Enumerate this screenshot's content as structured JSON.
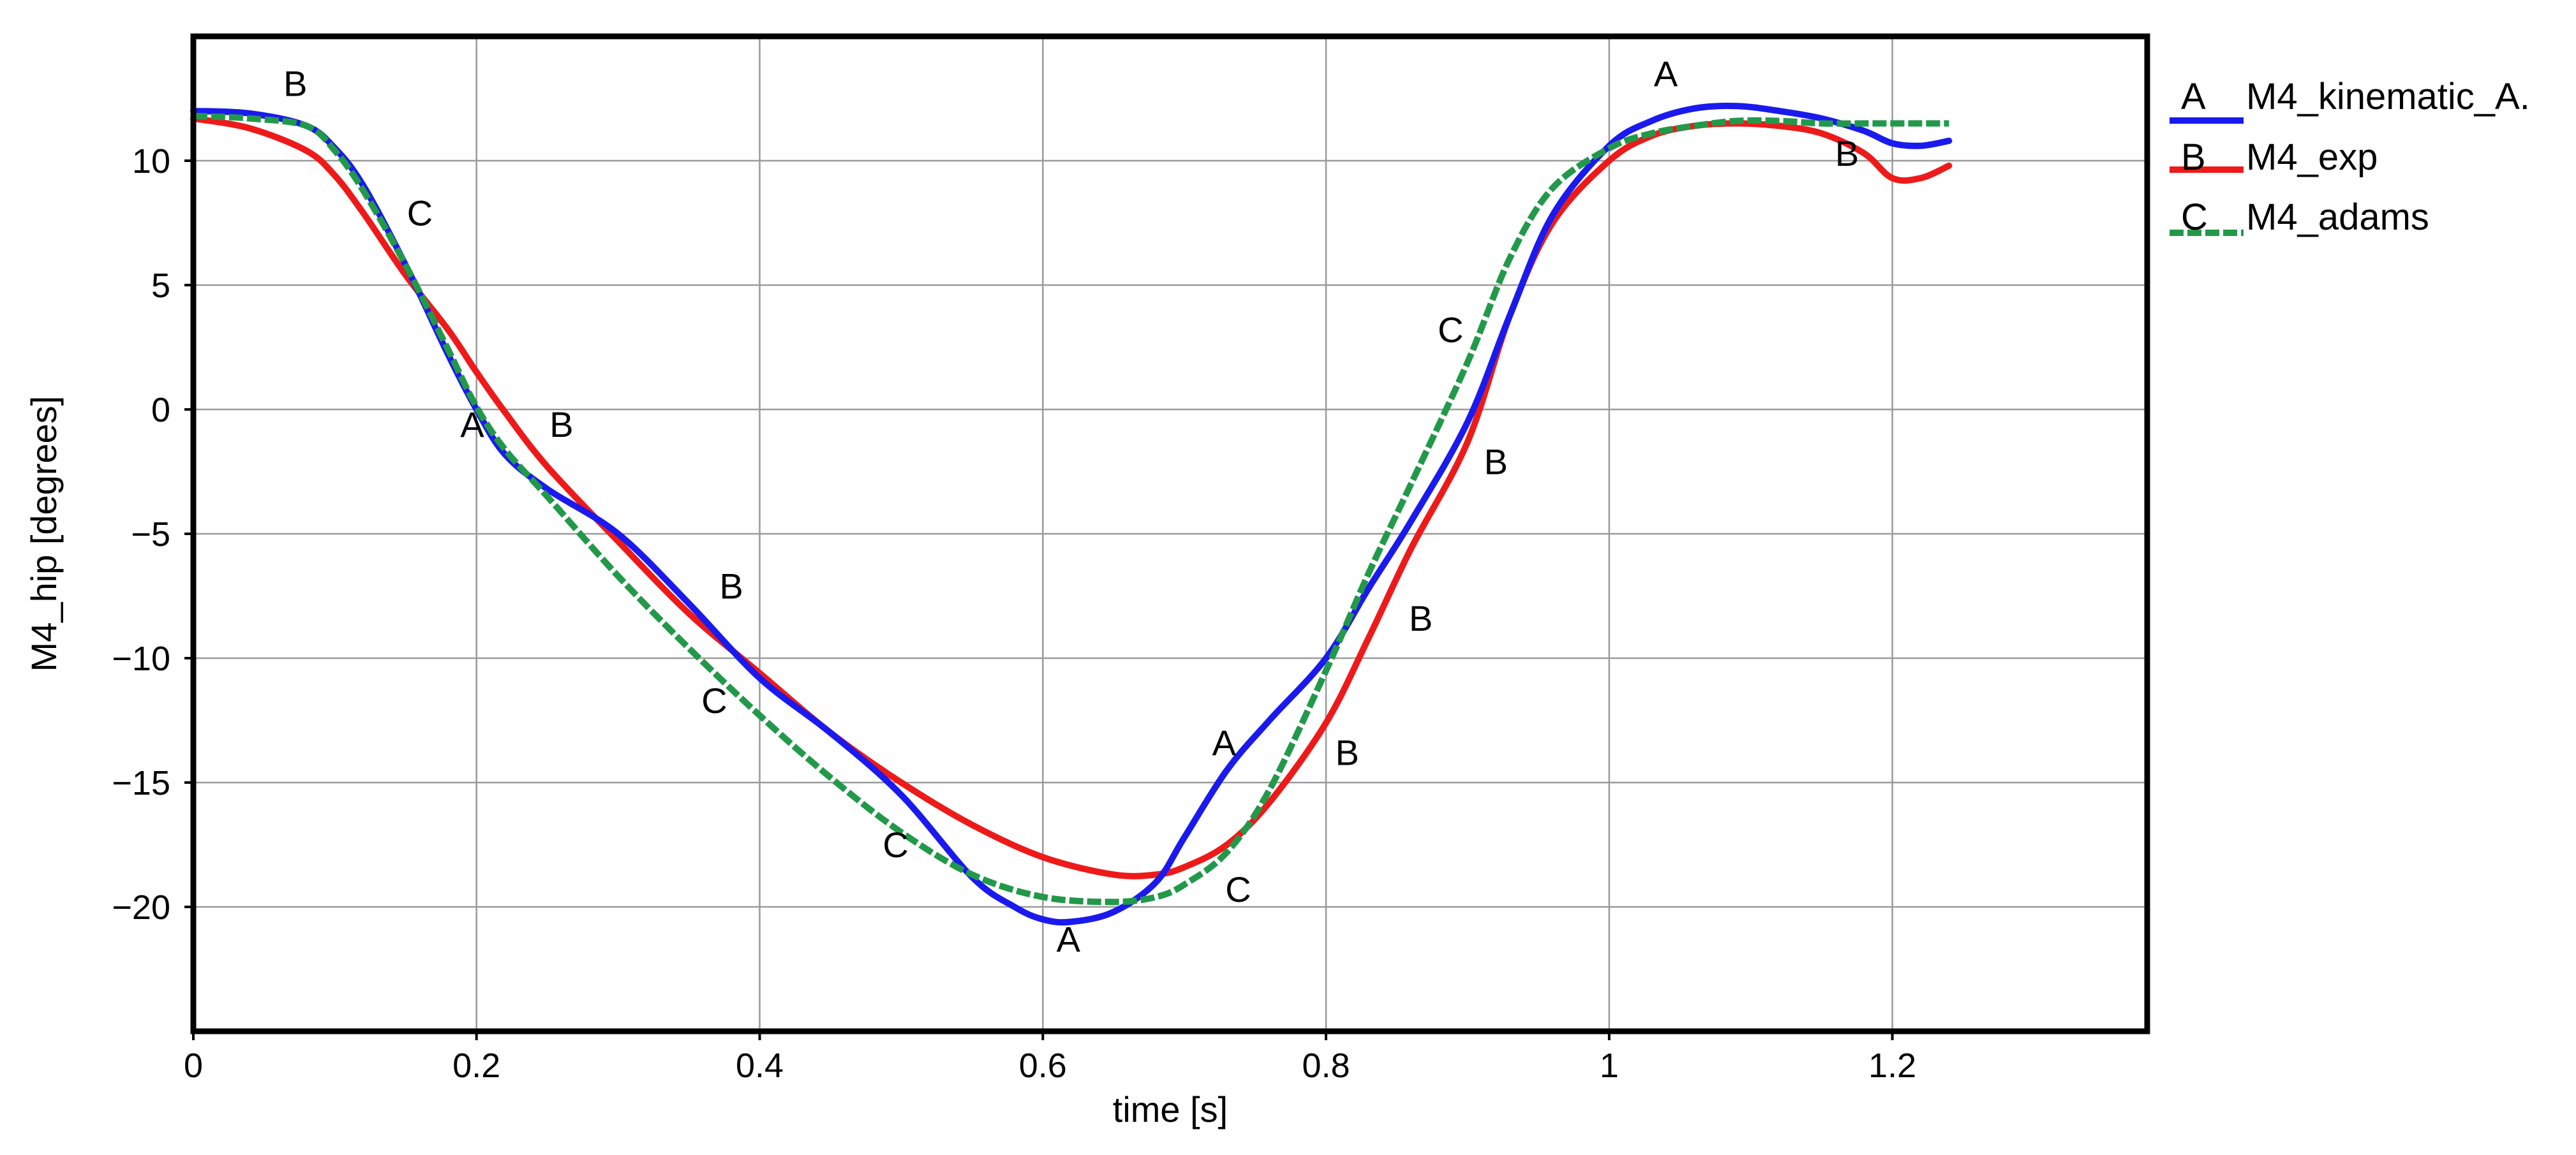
{
  "chart_data": {
    "type": "line",
    "title": "",
    "xlabel": "time [s]",
    "ylabel": "M4_hip [degrees]",
    "xlim": [
      0,
      1.38
    ],
    "ylim": [
      -25,
      15
    ],
    "grid": true,
    "legend_position": "right-outside-top",
    "x_ticks": [
      {
        "value": 0,
        "label": "0"
      },
      {
        "value": 0.2,
        "label": "0.2"
      },
      {
        "value": 0.4,
        "label": "0.4"
      },
      {
        "value": 0.6,
        "label": "0.6"
      },
      {
        "value": 0.8,
        "label": "0.8"
      },
      {
        "value": 1.0,
        "label": "1"
      },
      {
        "value": 1.2,
        "label": "1.2"
      }
    ],
    "y_ticks": [
      {
        "value": 10,
        "label": "10"
      },
      {
        "value": 5,
        "label": "5"
      },
      {
        "value": 0,
        "label": "0"
      },
      {
        "value": -5,
        "label": "−5"
      },
      {
        "value": -10,
        "label": "−10"
      },
      {
        "value": -15,
        "label": "−15"
      },
      {
        "value": -20,
        "label": "−20"
      }
    ],
    "series": [
      {
        "marker": "A",
        "name": "M4_kinematic_A.",
        "color": "#1a1aee",
        "dash": "solid",
        "x": [
          0,
          0.04,
          0.08,
          0.1,
          0.12,
          0.15,
          0.18,
          0.2,
          0.22,
          0.25,
          0.3,
          0.35,
          0.4,
          0.45,
          0.5,
          0.55,
          0.58,
          0.6,
          0.62,
          0.65,
          0.68,
          0.7,
          0.73,
          0.76,
          0.8,
          0.83,
          0.86,
          0.9,
          0.93,
          0.96,
          1.0,
          1.03,
          1.06,
          1.09,
          1.12,
          1.15,
          1.18,
          1.2,
          1.22,
          1.24
        ],
        "y": [
          12,
          11.9,
          11.4,
          10.5,
          9.0,
          5.8,
          2.2,
          0.0,
          -1.8,
          -3.2,
          -5.0,
          -7.8,
          -10.8,
          -13.0,
          -15.5,
          -18.8,
          -20.0,
          -20.5,
          -20.6,
          -20.2,
          -19.0,
          -17.2,
          -14.5,
          -12.5,
          -10.0,
          -7.2,
          -4.5,
          -0.5,
          3.8,
          7.8,
          10.6,
          11.6,
          12.1,
          12.2,
          12.0,
          11.7,
          11.2,
          10.7,
          10.6,
          10.8
        ]
      },
      {
        "marker": "B",
        "name": "M4_exp",
        "color": "#ee1a1a",
        "dash": "solid",
        "x": [
          0,
          0.04,
          0.08,
          0.1,
          0.12,
          0.15,
          0.18,
          0.2,
          0.22,
          0.25,
          0.3,
          0.35,
          0.4,
          0.45,
          0.5,
          0.55,
          0.6,
          0.65,
          0.68,
          0.7,
          0.73,
          0.76,
          0.8,
          0.83,
          0.86,
          0.9,
          0.93,
          0.96,
          1.0,
          1.03,
          1.06,
          1.09,
          1.12,
          1.15,
          1.18,
          1.2,
          1.22,
          1.24
        ],
        "y": [
          11.7,
          11.3,
          10.4,
          9.4,
          7.9,
          5.4,
          3.2,
          1.5,
          -0.1,
          -2.3,
          -5.3,
          -8.2,
          -10.6,
          -13.0,
          -15.0,
          -16.7,
          -18.0,
          -18.7,
          -18.7,
          -18.4,
          -17.5,
          -15.8,
          -12.6,
          -9.2,
          -5.6,
          -1.3,
          3.8,
          7.5,
          10.0,
          11.0,
          11.4,
          11.5,
          11.4,
          11.1,
          10.3,
          9.3,
          9.3,
          9.8
        ]
      },
      {
        "marker": "C",
        "name": "M4_adams",
        "color": "#22994a",
        "dash": "dashed",
        "x": [
          0,
          0.04,
          0.08,
          0.1,
          0.12,
          0.15,
          0.18,
          0.2,
          0.22,
          0.25,
          0.3,
          0.35,
          0.4,
          0.45,
          0.5,
          0.55,
          0.6,
          0.65,
          0.68,
          0.7,
          0.73,
          0.76,
          0.8,
          0.83,
          0.86,
          0.9,
          0.93,
          0.96,
          1.0,
          1.03,
          1.06,
          1.09,
          1.12,
          1.15,
          1.18,
          1.2,
          1.22,
          1.24
        ],
        "y": [
          11.8,
          11.7,
          11.4,
          10.4,
          8.8,
          5.8,
          2.4,
          0.1,
          -1.6,
          -3.5,
          -6.7,
          -9.6,
          -12.3,
          -14.8,
          -17.0,
          -18.7,
          -19.6,
          -19.8,
          -19.6,
          -19.1,
          -17.8,
          -15.3,
          -10.5,
          -6.6,
          -3.0,
          1.9,
          6.1,
          8.9,
          10.5,
          11.1,
          11.4,
          11.6,
          11.6,
          11.5,
          11.5,
          11.5,
          11.5,
          11.5
        ]
      }
    ],
    "curve_labels": [
      {
        "text": "A",
        "x": 0.197,
        "y": -1.1
      },
      {
        "text": "A",
        "x": 0.618,
        "y": -21.8
      },
      {
        "text": "A",
        "x": 0.728,
        "y": -13.9
      },
      {
        "text": "A",
        "x": 1.04,
        "y": 13.0
      },
      {
        "text": "B",
        "x": 0.072,
        "y": 12.6
      },
      {
        "text": "B",
        "x": 0.26,
        "y": -1.1
      },
      {
        "text": "B",
        "x": 0.38,
        "y": -7.6
      },
      {
        "text": "B",
        "x": 0.815,
        "y": -14.3
      },
      {
        "text": "B",
        "x": 0.867,
        "y": -8.9
      },
      {
        "text": "B",
        "x": 0.92,
        "y": -2.6
      },
      {
        "text": "B",
        "x": 1.168,
        "y": 9.8
      },
      {
        "text": "C",
        "x": 0.16,
        "y": 7.4
      },
      {
        "text": "C",
        "x": 0.368,
        "y": -12.2
      },
      {
        "text": "C",
        "x": 0.496,
        "y": -18.0
      },
      {
        "text": "C",
        "x": 0.738,
        "y": -19.8
      },
      {
        "text": "C",
        "x": 0.888,
        "y": 2.7
      }
    ]
  }
}
